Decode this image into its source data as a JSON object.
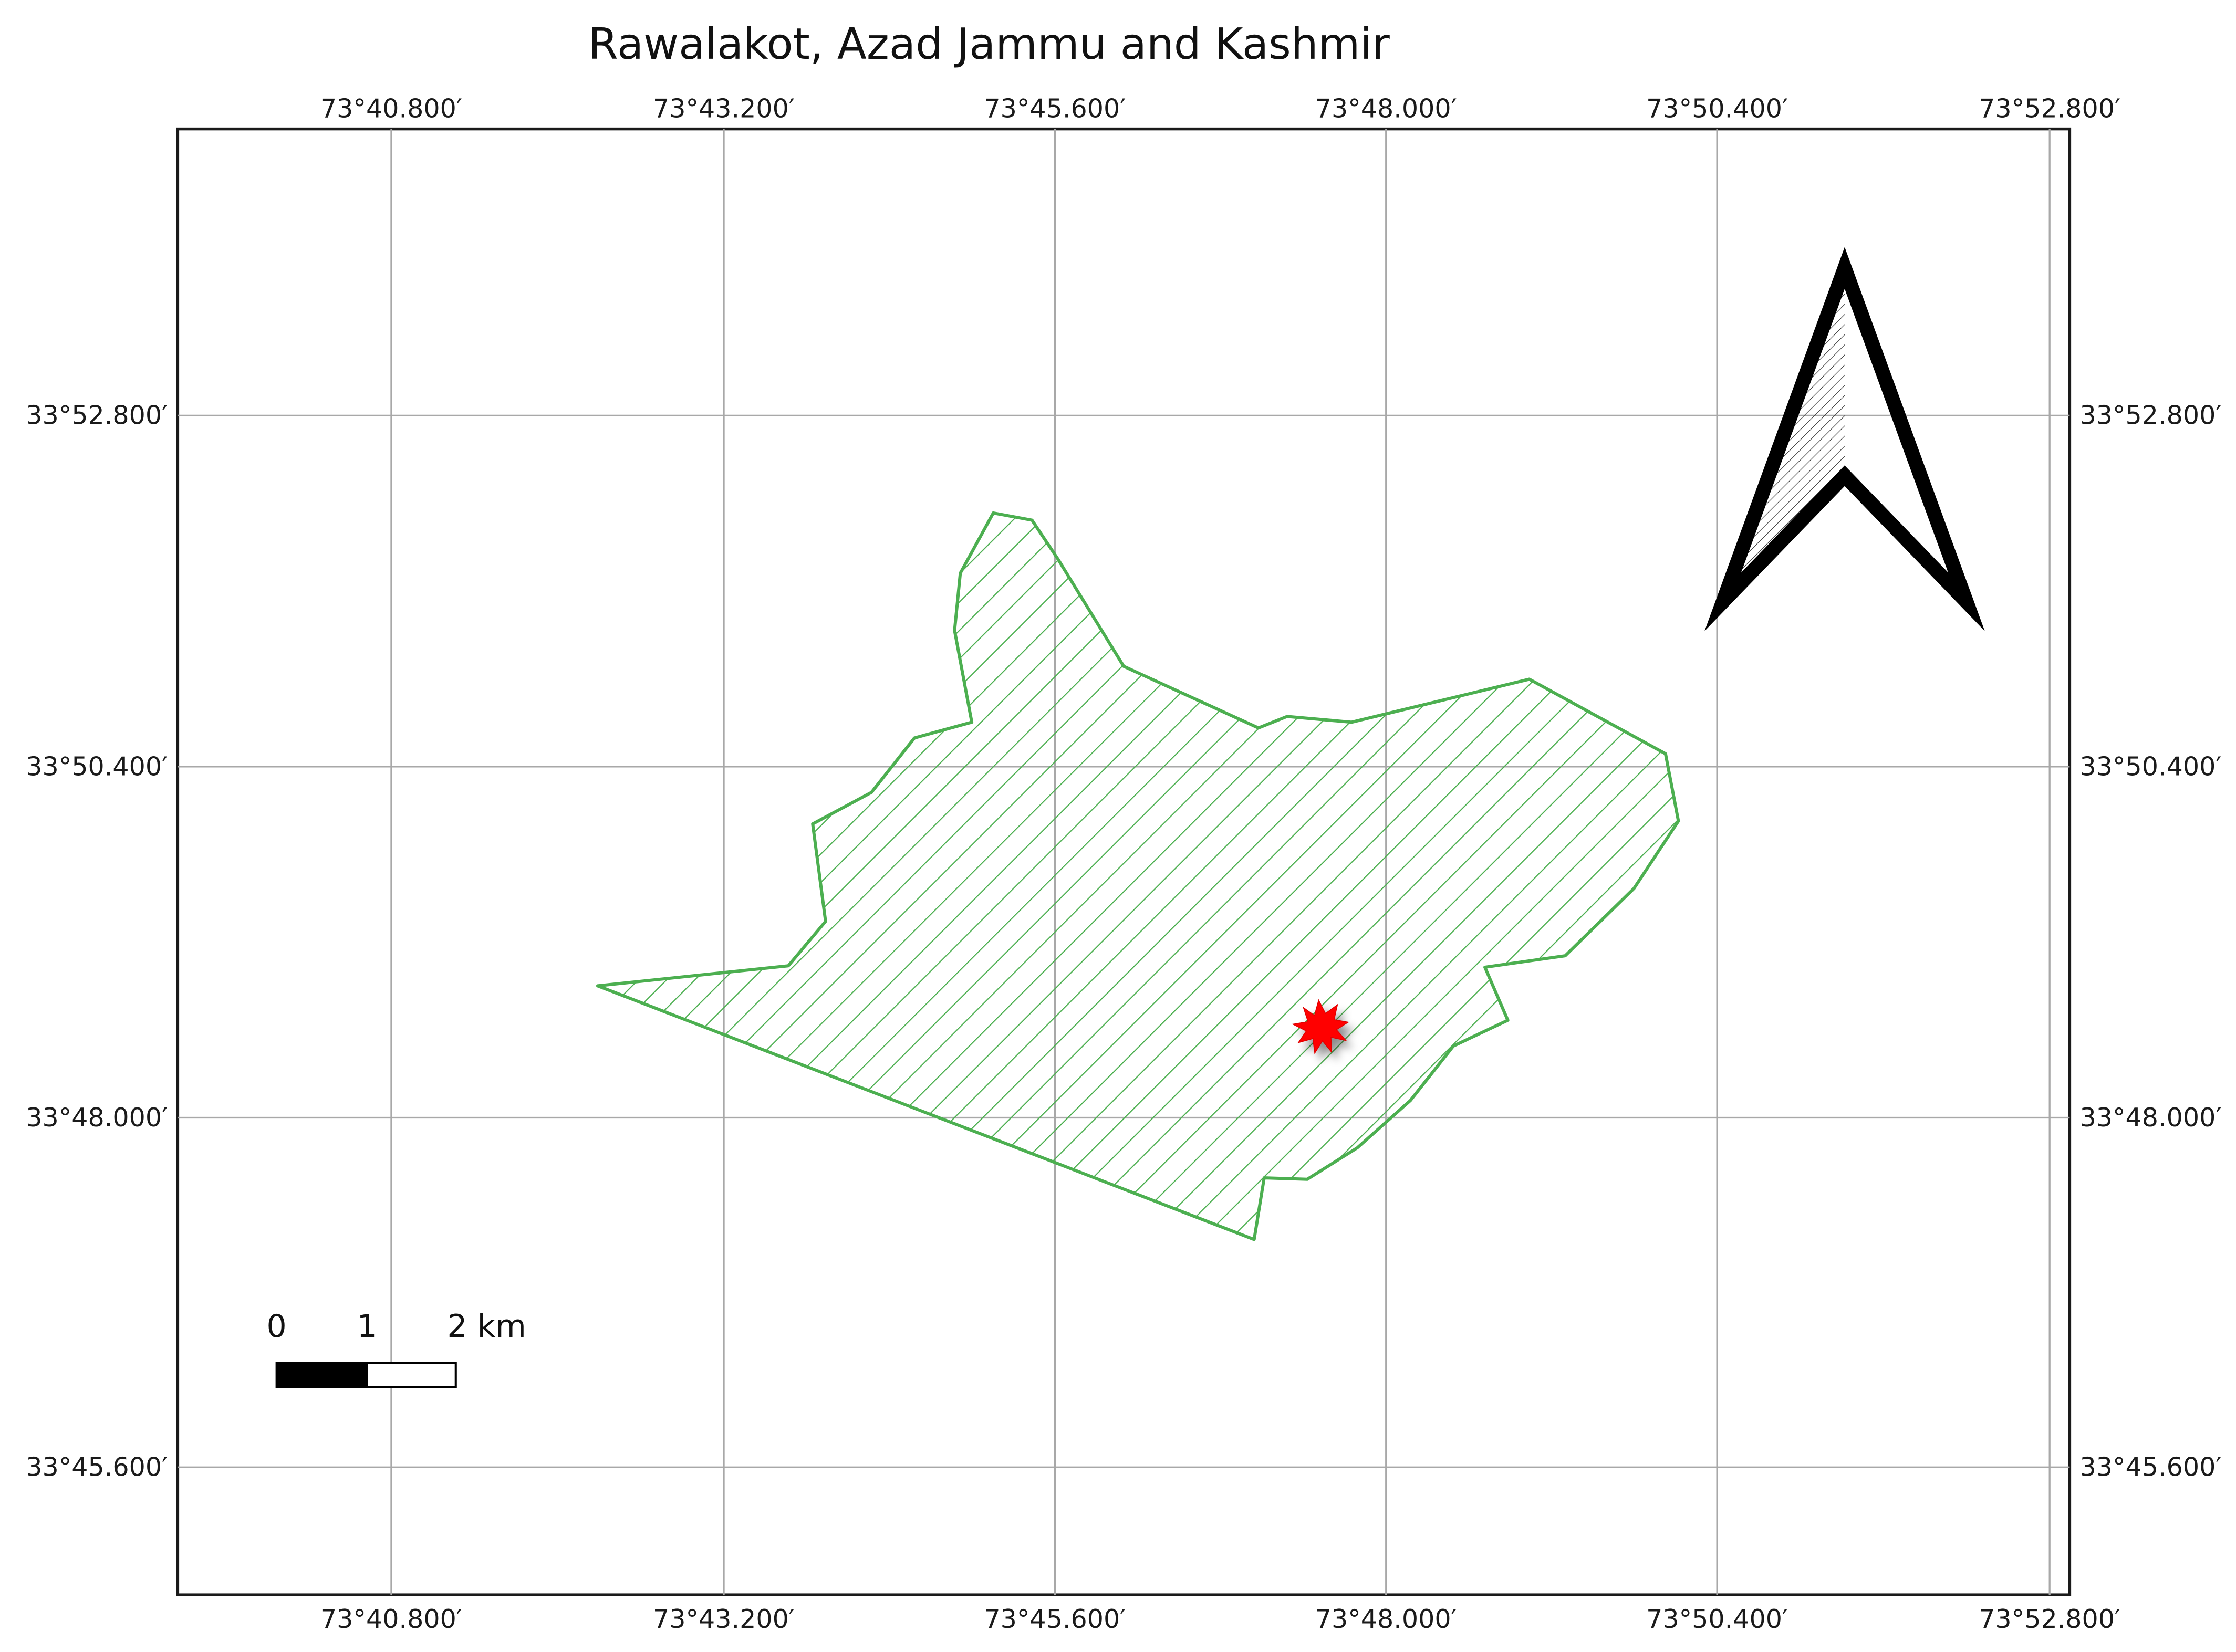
{
  "map": {
    "title": "Rawalakot, Azad Jammu and Kashmir",
    "longitude_ticks": [
      "73°40.800′",
      "73°43.200′",
      "73°45.600′",
      "73°48.000′",
      "73°50.400′",
      "73°52.800′"
    ],
    "latitude_ticks": [
      "33°52.800′",
      "33°50.400′",
      "33°48.000′",
      "33°45.600′"
    ],
    "scale_bar": {
      "labels": [
        "0",
        "1",
        "2 km"
      ]
    },
    "boundary_color": "#4caf50",
    "hatch_color": "#4caf50",
    "marker_color": "#ff0000",
    "north_arrow": "north-arrow-icon",
    "study_site_marker": "star-burst-icon"
  }
}
